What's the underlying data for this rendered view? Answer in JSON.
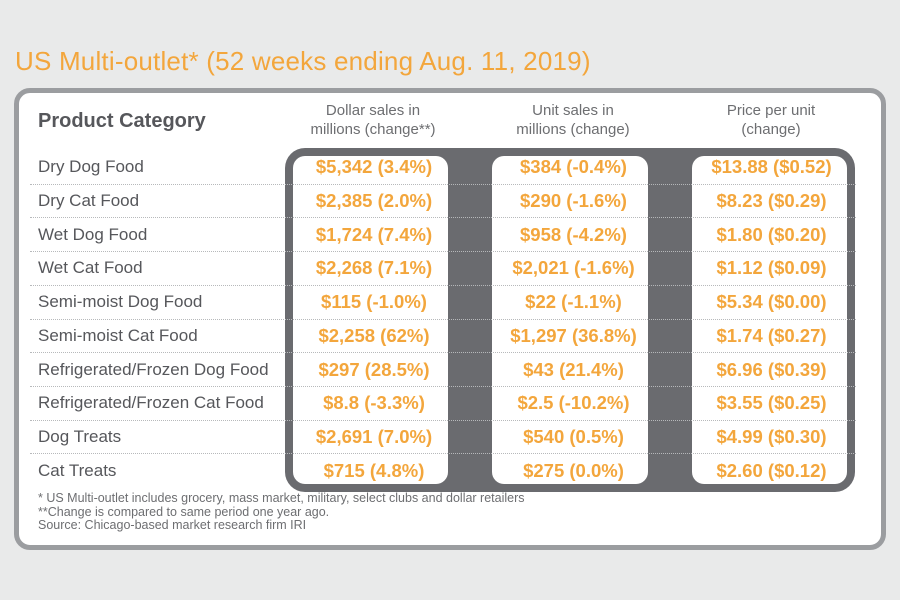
{
  "page": {
    "title": "US Multi-outlet* (52 weeks ending Aug. 11, 2019)"
  },
  "table": {
    "product_column_header": "Product Category",
    "column_headers": [
      {
        "line1": "Dollar sales in",
        "line2": "millions (change**)"
      },
      {
        "line1": "Unit sales in",
        "line2": "millions (change)"
      },
      {
        "line1": "Price per unit",
        "line2": "(change)"
      }
    ],
    "rows": [
      {
        "category": "Dry Dog Food",
        "dollar_sales": "$5,342 (3.4%)",
        "unit_sales": "$384 (-0.4%)",
        "price_per_unit": "$13.88 ($0.52)"
      },
      {
        "category": "Dry Cat Food",
        "dollar_sales": "$2,385 (2.0%)",
        "unit_sales": "$290 (-1.6%)",
        "price_per_unit": "$8.23 ($0.29)"
      },
      {
        "category": "Wet Dog Food",
        "dollar_sales": "$1,724 (7.4%)",
        "unit_sales": "$958 (-4.2%)",
        "price_per_unit": "$1.80 ($0.20)"
      },
      {
        "category": "Wet Cat Food",
        "dollar_sales": "$2,268 (7.1%)",
        "unit_sales": "$2,021 (-1.6%)",
        "price_per_unit": "$1.12 ($0.09)"
      },
      {
        "category": "Semi-moist Dog Food",
        "dollar_sales": "$115 (-1.0%)",
        "unit_sales": "$22 (-1.1%)",
        "price_per_unit": "$5.34 ($0.00)"
      },
      {
        "category": "Semi-moist Cat Food",
        "dollar_sales": "$2,258 (62%)",
        "unit_sales": "$1,297 (36.8%)",
        "price_per_unit": "$1.74 ($0.27)"
      },
      {
        "category": "Refrigerated/Frozen Dog Food",
        "dollar_sales": "$297 (28.5%)",
        "unit_sales": "$43 (21.4%)",
        "price_per_unit": "$6.96 ($0.39)"
      },
      {
        "category": "Refrigerated/Frozen Cat Food",
        "dollar_sales": "$8.8 (-3.3%)",
        "unit_sales": "$2.5 (-10.2%)",
        "price_per_unit": "$3.55 ($0.25)"
      },
      {
        "category": "Dog Treats",
        "dollar_sales": "$2,691 (7.0%)",
        "unit_sales": "$540 (0.5%)",
        "price_per_unit": "$4.99 ($0.30)"
      },
      {
        "category": "Cat Treats",
        "dollar_sales": "$715 (4.8%)",
        "unit_sales": "$275 (0.0%)",
        "price_per_unit": "$2.60 ($0.12)"
      }
    ]
  },
  "footnotes": {
    "note1": "* US Multi-outlet includes grocery, mass market, military, select clubs and dollar retailers",
    "note2": "**Change is compared to same period one year ago.",
    "note3": "Source: Chicago-based market research firm IRI"
  },
  "colors": {
    "page_bg": "#e9eaea",
    "accent_orange": "#f3a63c",
    "panel_border": "#9b9da0",
    "box_frame": "#6a6b6f",
    "dark_text": "#56575b",
    "mid_text": "#6d6e71",
    "dotted_line": "#b7b9bb"
  },
  "chart_data": {
    "type": "table",
    "title": "US Multi-outlet* (52 weeks ending Aug. 11, 2019)",
    "columns": [
      "Product Category",
      "Dollar sales in millions (change**)",
      "Unit sales in millions (change)",
      "Price per unit (change)"
    ],
    "records": [
      {
        "category": "Dry Dog Food",
        "dollar_sales_millions": 5342,
        "dollar_change_pct": 3.4,
        "unit_sales_millions": 384,
        "unit_change_pct": -0.4,
        "price_per_unit": 13.88,
        "price_change": 0.52
      },
      {
        "category": "Dry Cat Food",
        "dollar_sales_millions": 2385,
        "dollar_change_pct": 2.0,
        "unit_sales_millions": 290,
        "unit_change_pct": -1.6,
        "price_per_unit": 8.23,
        "price_change": 0.29
      },
      {
        "category": "Wet Dog Food",
        "dollar_sales_millions": 1724,
        "dollar_change_pct": 7.4,
        "unit_sales_millions": 958,
        "unit_change_pct": -4.2,
        "price_per_unit": 1.8,
        "price_change": 0.2
      },
      {
        "category": "Wet Cat Food",
        "dollar_sales_millions": 2268,
        "dollar_change_pct": 7.1,
        "unit_sales_millions": 2021,
        "unit_change_pct": -1.6,
        "price_per_unit": 1.12,
        "price_change": 0.09
      },
      {
        "category": "Semi-moist Dog Food",
        "dollar_sales_millions": 115,
        "dollar_change_pct": -1.0,
        "unit_sales_millions": 22,
        "unit_change_pct": -1.1,
        "price_per_unit": 5.34,
        "price_change": 0.0
      },
      {
        "category": "Semi-moist Cat Food",
        "dollar_sales_millions": 2258,
        "dollar_change_pct": 62,
        "unit_sales_millions": 1297,
        "unit_change_pct": 36.8,
        "price_per_unit": 1.74,
        "price_change": 0.27
      },
      {
        "category": "Refrigerated/Frozen Dog Food",
        "dollar_sales_millions": 297,
        "dollar_change_pct": 28.5,
        "unit_sales_millions": 43,
        "unit_change_pct": 21.4,
        "price_per_unit": 6.96,
        "price_change": 0.39
      },
      {
        "category": "Refrigerated/Frozen Cat Food",
        "dollar_sales_millions": 8.8,
        "dollar_change_pct": -3.3,
        "unit_sales_millions": 2.5,
        "unit_change_pct": -10.2,
        "price_per_unit": 3.55,
        "price_change": 0.25
      },
      {
        "category": "Dog Treats",
        "dollar_sales_millions": 2691,
        "dollar_change_pct": 7.0,
        "unit_sales_millions": 540,
        "unit_change_pct": 0.5,
        "price_per_unit": 4.99,
        "price_change": 0.3
      },
      {
        "category": "Cat Treats",
        "dollar_sales_millions": 715,
        "dollar_change_pct": 4.8,
        "unit_sales_millions": 275,
        "unit_change_pct": 0.0,
        "price_per_unit": 2.6,
        "price_change": 0.12
      }
    ],
    "source": "Chicago-based market research firm IRI"
  }
}
